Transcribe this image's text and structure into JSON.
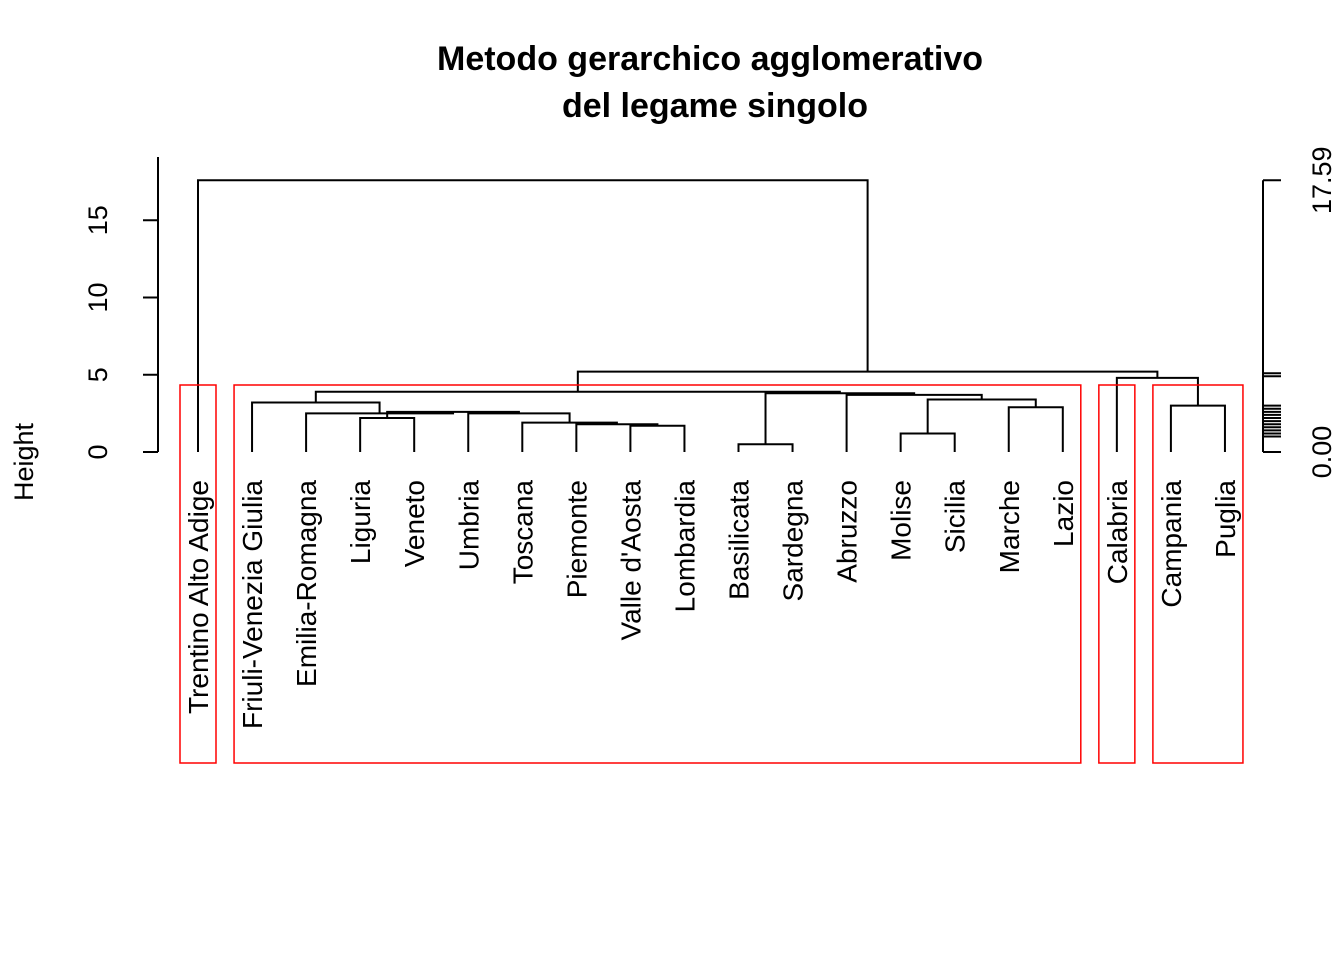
{
  "chart_data": {
    "type": "dendrogram",
    "title_line1": "Metodo gerarchico agglomerativo",
    "title_line2": "del legame singolo",
    "ylabel": "Height",
    "yticks": [
      "0",
      "5",
      "10",
      "15"
    ],
    "ylim": [
      0,
      18
    ],
    "right_axis_labels": [
      "0.00",
      "17.59"
    ],
    "right_axis_heights": [
      0,
      1.0,
      1.2,
      1.4,
      1.6,
      1.8,
      2.0,
      2.2,
      2.4,
      2.6,
      2.8,
      3.0,
      4.9,
      5.1,
      17.59
    ],
    "leaves": [
      "Trentino Alto Adige",
      "Friuli-Venezia Giulia",
      "Emilia-Romagna",
      "Liguria",
      "Veneto",
      "Umbria",
      "Toscana",
      "Piemonte",
      "Valle d'Aosta",
      "Lombardia",
      "Basilicata",
      "Sardegna",
      "Abruzzo",
      "Molise",
      "Sicilia",
      "Marche",
      "Lazio",
      "Calabria",
      "Campania",
      "Puglia"
    ],
    "merges": [
      {
        "left": "Basilicata",
        "right": "Sardegna",
        "height": 0.5
      },
      {
        "left": "Molise",
        "right": "Sicilia",
        "height": 1.2
      },
      {
        "left": "Valle d'Aosta",
        "right": "Lombardia",
        "height": 1.7
      },
      {
        "left": "Piemonte",
        "right": "m3",
        "height": 1.8
      },
      {
        "left": "Liguria",
        "right": "Veneto",
        "height": 2.2
      },
      {
        "left": "Toscana",
        "right": "m4",
        "height": 1.9
      },
      {
        "left": "Umbria",
        "right": "m6",
        "height": 2.5
      },
      {
        "left": "m5",
        "right": "m7",
        "height": 2.6
      },
      {
        "left": "Emilia-Romagna",
        "right": "m8",
        "height": 2.5
      },
      {
        "left": "Marche",
        "right": "Lazio",
        "height": 2.9
      },
      {
        "left": "Campania",
        "right": "Puglia",
        "height": 3.0
      },
      {
        "left": "Friuli-Venezia Giulia",
        "right": "m9",
        "height": 3.2
      },
      {
        "left": "m2",
        "right": "m10",
        "height": 3.4
      },
      {
        "left": "Abruzzo",
        "right": "m13",
        "height": 3.7
      },
      {
        "left": "m1",
        "right": "m14",
        "height": 3.8
      },
      {
        "left": "m12",
        "right": "m15",
        "height": 3.9
      },
      {
        "left": "Calabria",
        "right": "m11",
        "height": 4.8
      },
      {
        "left": "m16",
        "right": "m17",
        "height": 5.2
      },
      {
        "left": "Trentino Alto Adige",
        "right": "m18",
        "height": 17.59
      }
    ],
    "cluster_boxes": [
      {
        "first": 0,
        "last": 0
      },
      {
        "first": 1,
        "last": 16
      },
      {
        "first": 17,
        "last": 17
      },
      {
        "first": 18,
        "last": 19
      }
    ],
    "colors": {
      "links": "#000000",
      "boxes": "#ff0000"
    }
  }
}
